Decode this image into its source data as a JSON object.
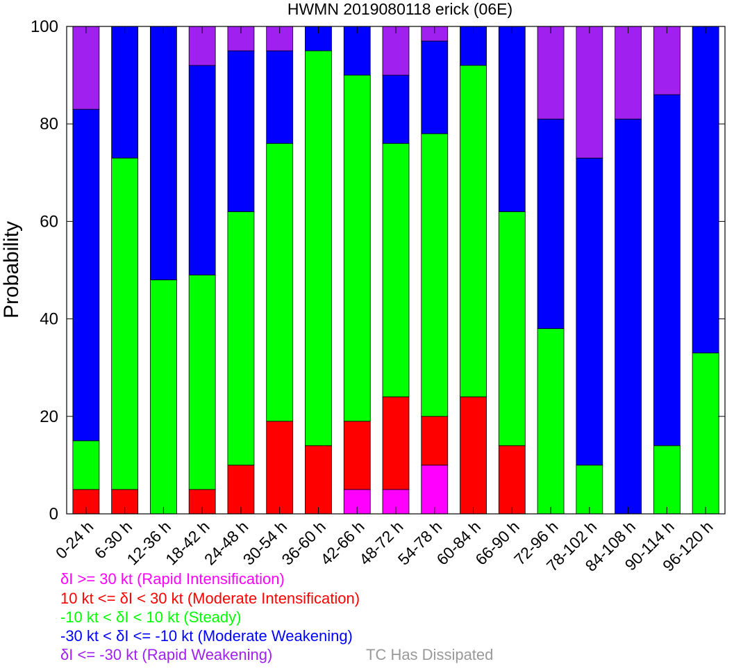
{
  "chart_data": {
    "type": "bar",
    "stacked": true,
    "title": "HWMN 2019080118 erick (06E)",
    "ylabel": "Probability",
    "xlabel": "",
    "ylim": [
      0,
      100
    ],
    "yticks": [
      0,
      20,
      40,
      60,
      80,
      100
    ],
    "grid": false,
    "categories": [
      "0-24 h",
      "6-30 h",
      "12-36 h",
      "18-42 h",
      "24-48 h",
      "30-54 h",
      "36-60 h",
      "42-66 h",
      "48-72 h",
      "54-78 h",
      "60-84 h",
      "66-90 h",
      "72-96 h",
      "78-102 h",
      "84-108 h",
      "90-114 h",
      "96-120 h"
    ],
    "series": [
      {
        "key": "ri",
        "color": "#ff00ff",
        "values": [
          0,
          0,
          0,
          0,
          0,
          0,
          0,
          5,
          5,
          10,
          0,
          0,
          0,
          0,
          0,
          0,
          0
        ]
      },
      {
        "key": "mi",
        "color": "#ff0000",
        "values": [
          5,
          5,
          0,
          5,
          10,
          19,
          14,
          14,
          19,
          10,
          24,
          14,
          0,
          0,
          0,
          0,
          0
        ]
      },
      {
        "key": "st",
        "color": "#00ff00",
        "values": [
          10,
          68,
          48,
          44,
          52,
          57,
          81,
          71,
          52,
          58,
          68,
          48,
          38,
          10,
          0,
          14,
          33
        ]
      },
      {
        "key": "mw",
        "color": "#0000ff",
        "values": [
          68,
          27,
          52,
          43,
          33,
          19,
          5,
          10,
          14,
          19,
          8,
          38,
          43,
          63,
          81,
          72,
          67
        ]
      },
      {
        "key": "rw",
        "color": "#a020f0",
        "values": [
          17,
          0,
          0,
          8,
          5,
          5,
          0,
          0,
          10,
          3,
          0,
          0,
          19,
          27,
          19,
          14,
          0
        ]
      }
    ],
    "legend": {
      "placement": "bottom",
      "entries": [
        {
          "key": "ri",
          "text": "δI >= 30 kt (Rapid Intensification)",
          "color": "#ff00ff"
        },
        {
          "key": "mi",
          "text": "10 kt <= δI < 30 kt (Moderate Intensification)",
          "color": "#ff0000"
        },
        {
          "key": "st",
          "text": "-10 kt < δI < 10 kt (Steady)",
          "color": "#00ff00"
        },
        {
          "key": "mw",
          "text": "-30 kt < δI <= -10 kt (Moderate Weakening)",
          "color": "#0000ff"
        },
        {
          "key": "rw",
          "text": "δI <= -30 kt (Rapid Weakening)",
          "color": "#a020f0"
        }
      ],
      "dissipated": {
        "text": "TC Has Dissipated",
        "color": "#999999"
      }
    }
  }
}
